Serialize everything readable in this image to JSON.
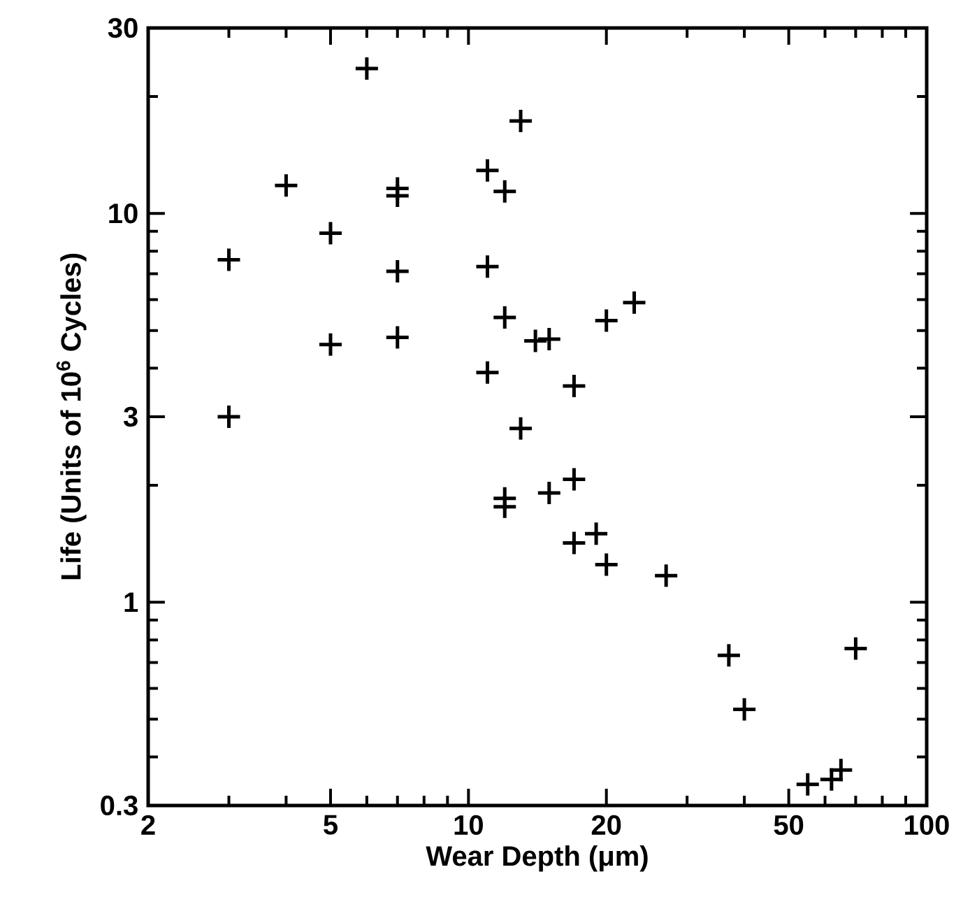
{
  "chart_data": {
    "type": "scatter",
    "xlabel": "Wear Depth (μm)",
    "ylabel": "Life (Units of 10$^{6}$ Cycles)",
    "log": "xy",
    "marker": "cross",
    "color": "#000000",
    "xlim": [
      2,
      100
    ],
    "ylim": [
      0.3,
      30
    ],
    "xticks": [
      2,
      {
        "value": 3,
        "label": null
      },
      {
        "value": 4,
        "label": null
      },
      5,
      {
        "value": 6,
        "label": null
      },
      {
        "value": 7,
        "label": null
      },
      {
        "value": 8,
        "label": null
      },
      {
        "value": 9,
        "label": null
      },
      10,
      20,
      {
        "value": 30,
        "label": null
      },
      {
        "value": 40,
        "label": null
      },
      50,
      {
        "value": 60,
        "label": null
      },
      {
        "value": 70,
        "label": null
      },
      {
        "value": 80,
        "label": null
      },
      {
        "value": 90,
        "label": null
      },
      100
    ],
    "yticks": [
      0.3,
      {
        "value": 0.4,
        "label": null
      },
      {
        "value": 0.5,
        "label": null
      },
      {
        "value": 0.6,
        "label": null
      },
      {
        "value": 0.7,
        "label": null
      },
      {
        "value": 0.8,
        "label": null
      },
      {
        "value": 0.9,
        "label": null
      },
      1,
      {
        "value": 2,
        "label": null
      },
      3,
      {
        "value": 4,
        "label": null
      },
      {
        "value": 5,
        "label": null
      },
      {
        "value": 6,
        "label": null
      },
      {
        "value": 7,
        "label": null
      },
      {
        "value": 8,
        "label": null
      },
      {
        "value": 9,
        "label": null
      },
      10,
      {
        "value": 20,
        "label": null
      },
      30
    ],
    "x": [
      6,
      13,
      4,
      7,
      7,
      11,
      12,
      5,
      3,
      7,
      11,
      12,
      5,
      7,
      11,
      3,
      13,
      14,
      15,
      20,
      23,
      17,
      12,
      12,
      15,
      17,
      17,
      19,
      20,
      27,
      37,
      40,
      70,
      55,
      62,
      65
    ],
    "values": [
      23.6,
      17.3,
      11.8,
      11.6,
      11.1,
      12.9,
      11.4,
      8.9,
      7.6,
      7.1,
      7.3,
      5.4,
      4.6,
      4.8,
      3.9,
      3.0,
      2.8,
      4.7,
      4.75,
      5.3,
      5.9,
      3.6,
      1.85,
      1.76,
      1.91,
      2.07,
      1.42,
      1.5,
      1.25,
      1.17,
      0.73,
      0.53,
      0.76,
      0.34,
      0.35,
      0.37
    ]
  }
}
